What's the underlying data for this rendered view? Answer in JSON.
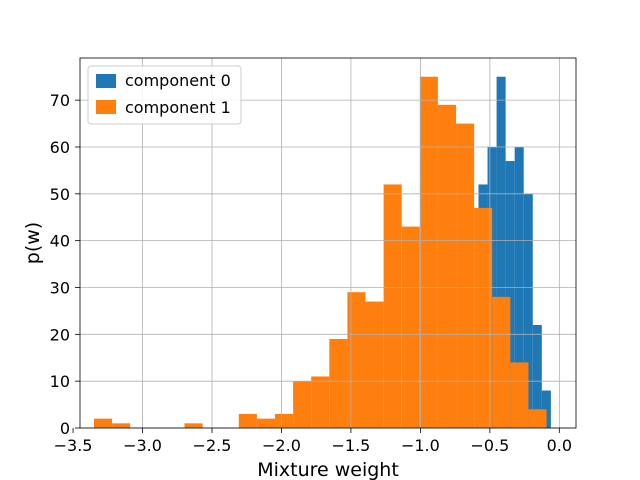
{
  "chart_data": {
    "type": "bar",
    "subtype": "histogram",
    "xlabel": "Mixture weight",
    "ylabel": "p(w)",
    "xlim": [
      -3.45,
      0.12
    ],
    "ylim": [
      0,
      79
    ],
    "xticks": [
      -3.5,
      -3.0,
      -2.5,
      -2.0,
      -1.5,
      -1.0,
      -0.5,
      0.0
    ],
    "xtick_labels": [
      "−3.5",
      "−3.0",
      "−2.5",
      "−2.0",
      "−1.5",
      "−1.0",
      "−0.5",
      "0.0"
    ],
    "yticks": [
      0,
      10,
      20,
      30,
      40,
      50,
      60,
      70
    ],
    "ytick_labels": [
      "0",
      "10",
      "20",
      "30",
      "40",
      "50",
      "60",
      "70"
    ],
    "grid": true,
    "legend_position": "top-left",
    "series": [
      {
        "name": "component 0",
        "color": "#1f77b4",
        "bin_width": 0.0651,
        "bin_starts": [
          -0.5818,
          -0.5167,
          -0.4516,
          -0.3865,
          -0.3214,
          -0.2563,
          -0.1912,
          -0.1261
        ],
        "values": [
          52,
          60,
          75,
          57,
          60,
          50,
          22,
          8
        ]
      },
      {
        "name": "component 1",
        "color": "#ff7f0e",
        "bin_width": 0.1303,
        "bin_starts": [
          -3.3495,
          -3.2192,
          -3.0889,
          -2.9586,
          -2.8283,
          -2.698,
          -2.5677,
          -2.4374,
          -2.3071,
          -2.1768,
          -2.0465,
          -1.9162,
          -1.7859,
          -1.6556,
          -1.5253,
          -1.395,
          -1.2647,
          -1.1344,
          -1.0041,
          -0.8738,
          -0.7435,
          -0.6132,
          -0.4829,
          -0.3526,
          -0.2223
        ],
        "values": [
          2,
          1,
          0,
          0,
          0,
          1,
          0,
          0,
          3,
          2,
          3,
          10,
          11,
          19,
          29,
          27,
          52,
          43,
          75,
          69,
          65,
          47,
          28,
          14,
          4
        ]
      }
    ]
  }
}
